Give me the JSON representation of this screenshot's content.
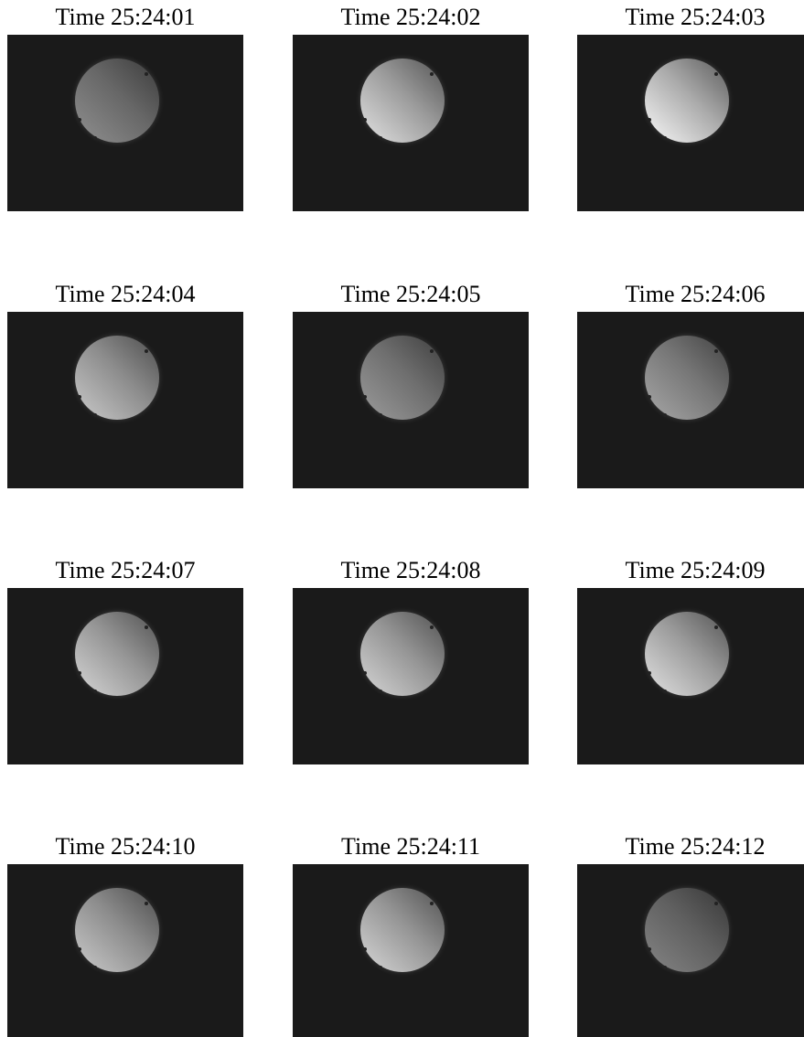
{
  "frames": [
    {
      "label": "Time 25:24:01"
    },
    {
      "label": "Time 25:24:02"
    },
    {
      "label": "Time 25:24:03"
    },
    {
      "label": "Time 25:24:04"
    },
    {
      "label": "Time 25:24:05"
    },
    {
      "label": "Time 25:24:06"
    },
    {
      "label": "Time 25:24:07"
    },
    {
      "label": "Time 25:24:08"
    },
    {
      "label": "Time 25:24:09"
    },
    {
      "label": "Time 25:24:10"
    },
    {
      "label": "Time 25:24:11"
    },
    {
      "label": "Time 25:24:12"
    }
  ]
}
